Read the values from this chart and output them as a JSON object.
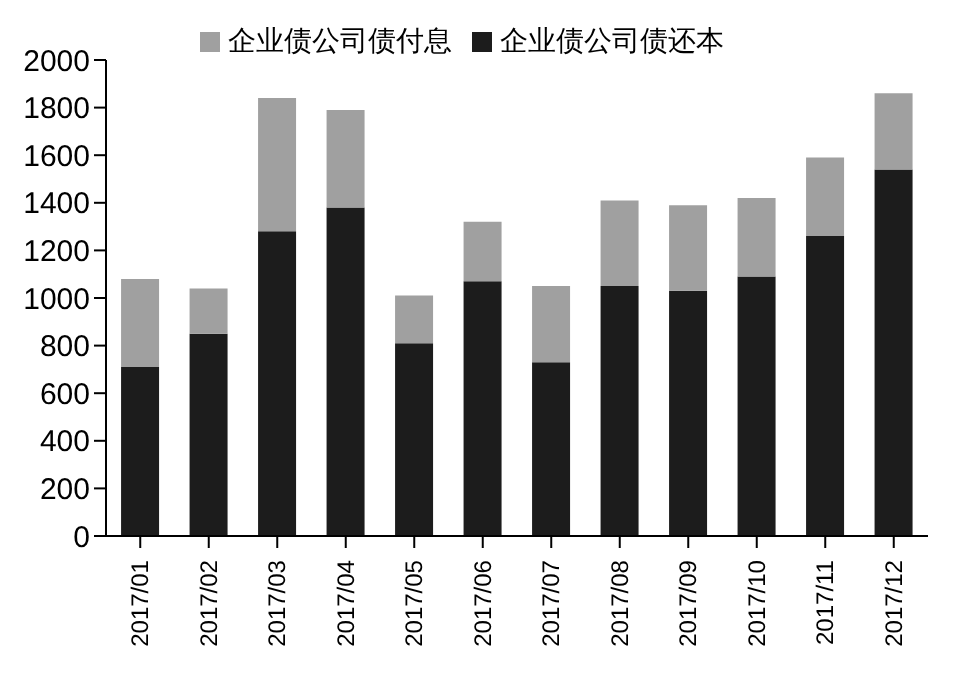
{
  "chart_data": {
    "type": "bar",
    "stacked": true,
    "categories": [
      "2017/01",
      "2017/02",
      "2017/03",
      "2017/04",
      "2017/05",
      "2017/06",
      "2017/07",
      "2017/08",
      "2017/09",
      "2017/10",
      "2017/11",
      "2017/12"
    ],
    "series": [
      {
        "name": "企业债公司债还本",
        "color": "#1c1c1c",
        "values": [
          710,
          850,
          1280,
          1380,
          810,
          1070,
          730,
          1050,
          1030,
          1090,
          1260,
          1540
        ]
      },
      {
        "name": "企业债公司债付息",
        "color": "#a0a0a0",
        "values": [
          370,
          190,
          560,
          410,
          200,
          250,
          320,
          360,
          360,
          330,
          330,
          320
        ]
      }
    ],
    "ylim": [
      0,
      2000
    ],
    "yticks": [
      0,
      200,
      400,
      600,
      800,
      1000,
      1200,
      1400,
      1600,
      1800,
      2000
    ],
    "grid": false,
    "legend": "top"
  }
}
